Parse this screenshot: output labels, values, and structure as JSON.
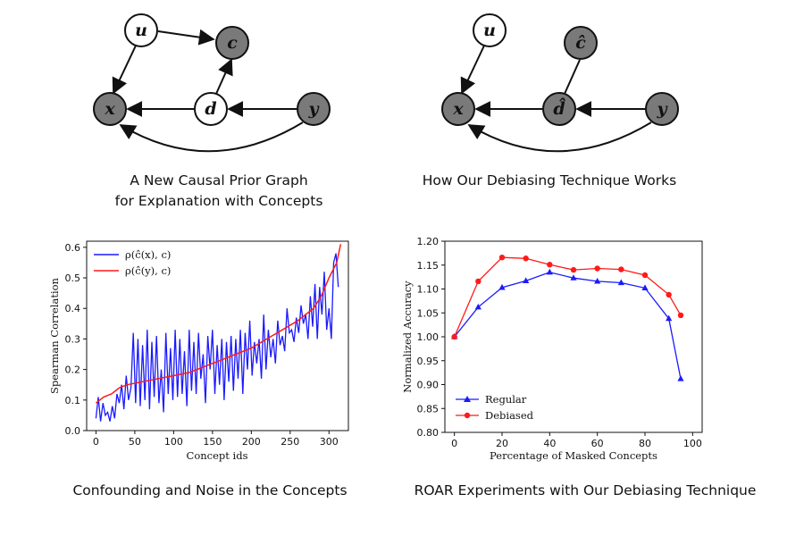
{
  "top_left": {
    "caption_line1": "A New Causal Prior Graph",
    "caption_line2": "for Explanation with Concepts",
    "nodes": {
      "u": "u",
      "c": "c",
      "x": "x",
      "d": "d",
      "y": "y"
    }
  },
  "top_right": {
    "caption": "How Our Debiasing Technique Works",
    "nodes": {
      "u": "u",
      "c": "ĉ",
      "x": "x",
      "d": "d̂",
      "y": "y"
    }
  },
  "bottom_left": {
    "caption": "Confounding and Noise in the Concepts",
    "legend": {
      "series1": "ρ(ĉ(x), c)",
      "series2": "ρ(ĉ(y), c)"
    },
    "colors": {
      "series1": "#1a1aff",
      "series2": "#ff1a1a"
    }
  },
  "bottom_right": {
    "caption": "ROAR Experiments with Our Debiasing Technique",
    "colors": {
      "regular": "#1a1aff",
      "debiased": "#ff1a1a"
    }
  },
  "chart_data": [
    {
      "type": "line",
      "title": "",
      "xlabel": "Concept ids",
      "ylabel": "Spearman Correlation",
      "xlim": [
        -12,
        325
      ],
      "ylim": [
        0.0,
        0.62
      ],
      "xticks": [
        "0",
        "50",
        "100",
        "150",
        "200",
        "250",
        "300"
      ],
      "yticks": [
        "0.0",
        "0.1",
        "0.2",
        "0.3",
        "0.4",
        "0.5",
        "0.6"
      ],
      "legend_position": "top-left",
      "series": [
        {
          "name": "ρ(ĉ(x), c)",
          "x": [
            0,
            3,
            6,
            9,
            12,
            15,
            18,
            21,
            24,
            27,
            30,
            33,
            36,
            39,
            42,
            45,
            48,
            51,
            54,
            57,
            60,
            63,
            66,
            69,
            72,
            75,
            78,
            81,
            84,
            87,
            90,
            93,
            96,
            99,
            102,
            105,
            108,
            111,
            114,
            117,
            120,
            123,
            126,
            129,
            132,
            135,
            138,
            141,
            144,
            147,
            150,
            153,
            156,
            159,
            162,
            165,
            168,
            171,
            174,
            177,
            180,
            183,
            186,
            189,
            192,
            195,
            198,
            201,
            204,
            207,
            210,
            213,
            216,
            219,
            222,
            225,
            228,
            231,
            234,
            237,
            240,
            243,
            246,
            249,
            252,
            255,
            258,
            261,
            264,
            267,
            270,
            273,
            276,
            279,
            282,
            285,
            288,
            291,
            294,
            297,
            300,
            303,
            306,
            309,
            312
          ],
          "values": [
            0.04,
            0.11,
            0.03,
            0.09,
            0.05,
            0.06,
            0.03,
            0.08,
            0.04,
            0.12,
            0.09,
            0.15,
            0.07,
            0.18,
            0.1,
            0.14,
            0.32,
            0.09,
            0.3,
            0.08,
            0.28,
            0.1,
            0.33,
            0.07,
            0.29,
            0.11,
            0.31,
            0.09,
            0.2,
            0.06,
            0.32,
            0.12,
            0.27,
            0.1,
            0.33,
            0.11,
            0.3,
            0.12,
            0.26,
            0.08,
            0.33,
            0.13,
            0.29,
            0.12,
            0.32,
            0.17,
            0.25,
            0.09,
            0.31,
            0.2,
            0.33,
            0.12,
            0.28,
            0.15,
            0.3,
            0.1,
            0.29,
            0.16,
            0.31,
            0.13,
            0.3,
            0.17,
            0.33,
            0.12,
            0.32,
            0.2,
            0.36,
            0.18,
            0.29,
            0.22,
            0.3,
            0.17,
            0.38,
            0.2,
            0.33,
            0.24,
            0.3,
            0.22,
            0.36,
            0.28,
            0.31,
            0.26,
            0.4,
            0.32,
            0.33,
            0.29,
            0.37,
            0.32,
            0.41,
            0.35,
            0.38,
            0.3,
            0.44,
            0.34,
            0.48,
            0.3,
            0.47,
            0.38,
            0.52,
            0.33,
            0.4,
            0.3,
            0.55,
            0.58,
            0.47
          ]
        },
        {
          "name": "ρ(ĉ(y), c)",
          "x": [
            0,
            10,
            20,
            30,
            40,
            60,
            80,
            100,
            120,
            140,
            160,
            180,
            200,
            220,
            240,
            260,
            280,
            290,
            300,
            310,
            315
          ],
          "values": [
            0.09,
            0.11,
            0.12,
            0.14,
            0.15,
            0.16,
            0.17,
            0.18,
            0.19,
            0.21,
            0.23,
            0.25,
            0.27,
            0.3,
            0.33,
            0.36,
            0.4,
            0.44,
            0.5,
            0.55,
            0.61
          ]
        }
      ]
    },
    {
      "type": "line",
      "title": "",
      "xlabel": "Percentage of Masked Concepts",
      "ylabel": "Normalized Accuracy",
      "xlim": [
        -4,
        104
      ],
      "ylim": [
        0.8,
        1.2
      ],
      "xticks": [
        "0",
        "20",
        "40",
        "60",
        "80",
        "100"
      ],
      "yticks": [
        "0.80",
        "0.85",
        "0.90",
        "0.95",
        "1.00",
        "1.05",
        "1.10",
        "1.15",
        "1.20"
      ],
      "legend_position": "bottom-left",
      "series": [
        {
          "name": "Regular",
          "marker": "triangle",
          "x": [
            0,
            10,
            20,
            30,
            40,
            50,
            60,
            70,
            80,
            90,
            95
          ],
          "values": [
            1.0,
            1.062,
            1.103,
            1.117,
            1.135,
            1.123,
            1.116,
            1.113,
            1.102,
            1.038,
            0.912
          ]
        },
        {
          "name": "Debiased",
          "marker": "circle",
          "x": [
            0,
            10,
            20,
            30,
            40,
            50,
            60,
            70,
            80,
            90,
            95
          ],
          "values": [
            1.0,
            1.116,
            1.166,
            1.164,
            1.151,
            1.14,
            1.143,
            1.141,
            1.129,
            1.088,
            1.045
          ]
        }
      ]
    }
  ]
}
